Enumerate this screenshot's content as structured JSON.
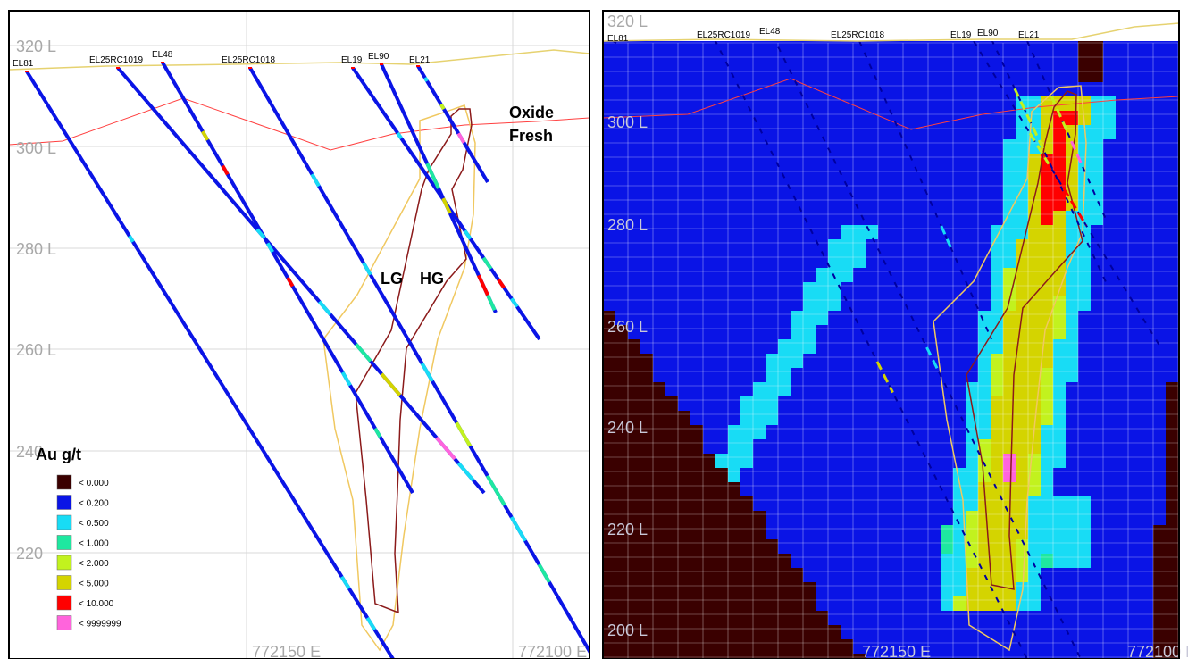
{
  "colors": {
    "c0": "#3a0000",
    "c1": "#0a14e6",
    "c2": "#18dcf5",
    "c3": "#1ee8a0",
    "c4": "#c2f21e",
    "c5": "#d4d400",
    "c6": "#ff0000",
    "c7": "#ff64dc",
    "topo": "#e6d270",
    "oxide_line": "#ff4040",
    "hg_outline": "#8b1a1a",
    "lg_outline": "#f0c860"
  },
  "left_panel": {
    "levels": [
      "320 L",
      "300 L",
      "280 L",
      "260 L",
      "240",
      "220"
    ],
    "eastings": [
      "772150 E",
      "772100 E"
    ],
    "holes": [
      "EL81",
      "EL25RC1019",
      "EL48",
      "EL25RC1018",
      "EL19",
      "EL90",
      "EL21"
    ],
    "labels": {
      "oxide": "Oxide",
      "fresh": "Fresh",
      "lg": "LG",
      "hg": "HG"
    }
  },
  "right_panel": {
    "levels": [
      "320 L",
      "300 L",
      "280 L",
      "260 L",
      "240 L",
      "220 L",
      "200 L"
    ],
    "eastings": [
      "772150 E",
      "772100 E"
    ],
    "holes": [
      "EL81",
      "EL25RC1019",
      "EL48",
      "EL25RC1018",
      "EL19",
      "EL90",
      "EL21"
    ]
  },
  "legend": {
    "title": "Au g/t",
    "items": [
      {
        "label": "< 0.000",
        "color": "#3a0000"
      },
      {
        "label": "< 0.200",
        "color": "#0a14e6"
      },
      {
        "label": "< 0.500",
        "color": "#18dcf5"
      },
      {
        "label": "< 1.000",
        "color": "#1ee8a0"
      },
      {
        "label": "< 2.000",
        "color": "#c2f21e"
      },
      {
        "label": "< 5.000",
        "color": "#d4d400"
      },
      {
        "label": "< 10.000",
        "color": "#ff0000"
      },
      {
        "label": "< 9999999",
        "color": "#ff64dc"
      }
    ]
  }
}
